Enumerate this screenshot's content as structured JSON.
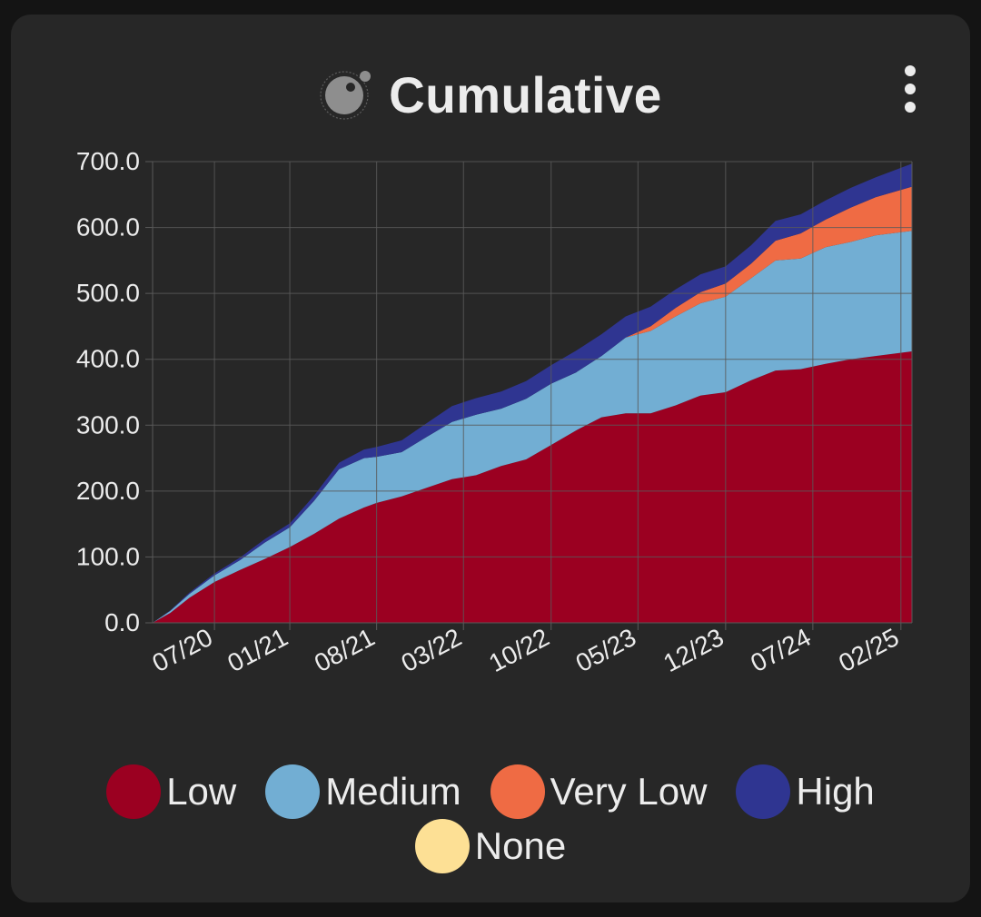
{
  "card": {
    "title": "Cumulative",
    "menu_icon": "more-vertical-icon",
    "logo_icon": "moon-orbit-logo"
  },
  "colors": {
    "card_bg": "#272727",
    "page_bg": "#141414",
    "grid": "#5a5a5a",
    "text": "#ececec"
  },
  "chart_data": {
    "type": "area",
    "stacked": true,
    "title": "Cumulative",
    "xlabel": "",
    "ylabel": "",
    "ylim": [
      0,
      700
    ],
    "y_ticks": [
      "0.0",
      "100.0",
      "200.0",
      "300.0",
      "400.0",
      "500.0",
      "600.0",
      "700.0"
    ],
    "x_range": [
      "2020-02-01",
      "2025-02-28"
    ],
    "x_ticks": [
      {
        "label": "07/20",
        "date": "2020-07-01"
      },
      {
        "label": "01/21",
        "date": "2021-01-01"
      },
      {
        "label": "08/21",
        "date": "2021-08-01"
      },
      {
        "label": "03/22",
        "date": "2022-03-01"
      },
      {
        "label": "10/22",
        "date": "2022-10-01"
      },
      {
        "label": "05/23",
        "date": "2023-05-01"
      },
      {
        "label": "12/23",
        "date": "2023-12-01"
      },
      {
        "label": "07/24",
        "date": "2024-07-01"
      },
      {
        "label": "02/25",
        "date": "2025-02-01"
      }
    ],
    "grid": true,
    "legend_position": "bottom",
    "dates": [
      "2020-02-01",
      "2020-03-15",
      "2020-05-01",
      "2020-07-01",
      "2020-09-01",
      "2020-11-01",
      "2021-01-01",
      "2021-03-01",
      "2021-05-01",
      "2021-07-01",
      "2021-08-01",
      "2021-10-01",
      "2021-12-01",
      "2022-02-01",
      "2022-04-01",
      "2022-06-01",
      "2022-08-01",
      "2022-10-01",
      "2022-12-01",
      "2023-02-01",
      "2023-04-01",
      "2023-06-01",
      "2023-08-01",
      "2023-10-01",
      "2023-12-01",
      "2024-02-01",
      "2024-04-01",
      "2024-06-01",
      "2024-08-01",
      "2024-10-01",
      "2024-12-01",
      "2025-02-28"
    ],
    "series": [
      {
        "name": "Low",
        "color": "#9b0021",
        "values": [
          0,
          15,
          38,
          62,
          80,
          97,
          115,
          135,
          158,
          175,
          182,
          192,
          205,
          218,
          224,
          238,
          248,
          270,
          292,
          312,
          318,
          318,
          330,
          345,
          350,
          368,
          383,
          385,
          393,
          400,
          405,
          412
        ]
      },
      {
        "name": "Medium",
        "color": "#72aed3",
        "values": [
          0,
          3,
          6,
          10,
          15,
          25,
          30,
          50,
          75,
          75,
          70,
          67,
          77,
          87,
          92,
          87,
          92,
          93,
          88,
          93,
          115,
          125,
          135,
          140,
          145,
          155,
          167,
          168,
          177,
          178,
          183,
          183
        ]
      },
      {
        "name": "Very Low",
        "color": "#ef6b44",
        "values": [
          0,
          0,
          0,
          0,
          0,
          0,
          0,
          0,
          0,
          0,
          0,
          0,
          0,
          0,
          0,
          0,
          0,
          0,
          0,
          0,
          0,
          7,
          13,
          17,
          20,
          22,
          30,
          38,
          42,
          52,
          58,
          67
        ]
      },
      {
        "name": "High",
        "color": "#2f3591",
        "values": [
          0,
          1,
          2,
          3,
          4,
          5,
          6,
          8,
          10,
          13,
          15,
          18,
          21,
          24,
          25,
          26,
          27,
          28,
          33,
          33,
          32,
          30,
          28,
          27,
          26,
          28,
          30,
          29,
          29,
          30,
          30,
          35
        ]
      },
      {
        "name": "None",
        "color": "#fde095",
        "values": [
          0,
          0,
          0,
          0,
          0,
          0,
          0,
          0,
          0,
          0,
          0,
          0,
          0,
          0,
          0,
          0,
          0,
          0,
          0,
          0,
          0,
          0,
          0,
          0,
          0,
          0,
          0,
          0,
          0,
          0,
          0,
          0
        ]
      }
    ]
  },
  "legend": [
    {
      "label": "Low",
      "color": "#9b0021"
    },
    {
      "label": "Medium",
      "color": "#72aed3"
    },
    {
      "label": "Very Low",
      "color": "#ef6b44"
    },
    {
      "label": "High",
      "color": "#2f3591"
    },
    {
      "label": "None",
      "color": "#fde095"
    }
  ]
}
